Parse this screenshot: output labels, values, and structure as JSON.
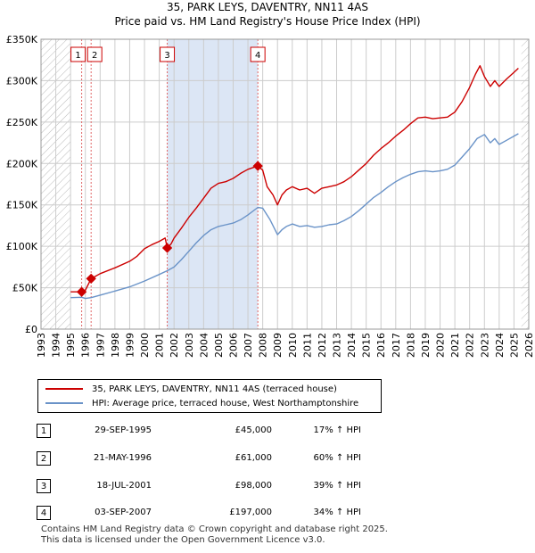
{
  "title_line1": "35, PARK LEYS, DAVENTRY, NN11 4AS",
  "title_line2": "Price paid vs. HM Land Registry's House Price Index (HPI)",
  "colors": {
    "property": "#cc0000",
    "hpi": "#6a93c8",
    "shade": "#dce6f5",
    "grid": "#cccccc"
  },
  "chart_data": {
    "type": "line",
    "ylim": [
      0,
      350000
    ],
    "xlim": [
      1993,
      2026
    ],
    "y_ticks": [
      0,
      50000,
      100000,
      150000,
      200000,
      250000,
      300000,
      350000
    ],
    "y_tick_labels": [
      "£0",
      "£50K",
      "£100K",
      "£150K",
      "£200K",
      "£250K",
      "£300K",
      "£350K"
    ],
    "x_tick_labels": [
      "1993",
      "1994",
      "1995",
      "1996",
      "1997",
      "1998",
      "1999",
      "2000",
      "2001",
      "2002",
      "2003",
      "2004",
      "2005",
      "2006",
      "2007",
      "2008",
      "2009",
      "2010",
      "2011",
      "2012",
      "2013",
      "2014",
      "2015",
      "2016",
      "2017",
      "2018",
      "2019",
      "2020",
      "2021",
      "2022",
      "2023",
      "2024",
      "2025",
      "2026"
    ],
    "hatched_until": 1995.0,
    "hatched_from": 2025.5,
    "shaded_between": [
      2001.54,
      2007.67
    ],
    "series": [
      {
        "name": "35, PARK LEYS, DAVENTRY, NN11 4AS (terraced house)",
        "x": [
          1995.0,
          1995.75,
          1995.95,
          1996.39,
          1996.7,
          1997.0,
          1998.0,
          1999.0,
          1999.5,
          2000.0,
          2000.5,
          2001.0,
          2001.4,
          2001.54,
          2001.8,
          2002.0,
          2002.5,
          2003.0,
          2003.5,
          2004.0,
          2004.5,
          2005.0,
          2005.5,
          2006.0,
          2006.5,
          2007.0,
          2007.67,
          2008.0,
          2008.3,
          2008.7,
          2009.0,
          2009.3,
          2009.6,
          2010.0,
          2010.5,
          2011.0,
          2011.5,
          2012.0,
          2012.5,
          2013.0,
          2013.5,
          2014.0,
          2014.5,
          2015.0,
          2015.5,
          2016.0,
          2016.5,
          2017.0,
          2017.5,
          2018.0,
          2018.5,
          2019.0,
          2019.5,
          2020.0,
          2020.5,
          2021.0,
          2021.5,
          2022.0,
          2022.4,
          2022.7,
          2023.0,
          2023.4,
          2023.7,
          2024.0,
          2024.5,
          2025.0,
          2025.3
        ],
        "values": [
          45000,
          45000,
          45200,
          61000,
          64000,
          67000,
          74000,
          82000,
          88000,
          97000,
          102000,
          106000,
          110000,
          98000,
          103000,
          110000,
          122000,
          135000,
          146000,
          158000,
          170000,
          176000,
          178000,
          182000,
          188000,
          193000,
          197000,
          192000,
          172000,
          162000,
          150000,
          162000,
          168000,
          172000,
          168000,
          170000,
          164000,
          170000,
          172000,
          174000,
          178000,
          184000,
          192000,
          200000,
          210000,
          218000,
          225000,
          233000,
          240000,
          248000,
          255000,
          256000,
          254000,
          255000,
          256000,
          262000,
          275000,
          292000,
          308000,
          318000,
          305000,
          293000,
          300000,
          293000,
          302000,
          310000,
          315000
        ]
      },
      {
        "name": "HPI: Average price, terraced house, West Northamptonshire",
        "x": [
          1995.0,
          1995.75,
          1996.0,
          1996.39,
          1997.0,
          1998.0,
          1999.0,
          2000.0,
          2001.0,
          2001.54,
          2002.0,
          2002.5,
          2003.0,
          2003.5,
          2004.0,
          2004.5,
          2005.0,
          2005.5,
          2006.0,
          2006.5,
          2007.0,
          2007.67,
          2008.0,
          2008.5,
          2009.0,
          2009.3,
          2009.6,
          2010.0,
          2010.5,
          2011.0,
          2011.5,
          2012.0,
          2012.5,
          2013.0,
          2013.5,
          2014.0,
          2014.5,
          2015.0,
          2015.5,
          2016.0,
          2016.5,
          2017.0,
          2017.5,
          2018.0,
          2018.5,
          2019.0,
          2019.5,
          2020.0,
          2020.5,
          2021.0,
          2021.5,
          2022.0,
          2022.5,
          2023.0,
          2023.4,
          2023.7,
          2024.0,
          2024.5,
          2025.0,
          2025.3
        ],
        "values": [
          38000,
          38400,
          37000,
          38000,
          41000,
          46000,
          51000,
          58000,
          66000,
          70500,
          75000,
          84000,
          94000,
          104000,
          113000,
          120000,
          124000,
          126000,
          128000,
          132000,
          138000,
          147000,
          146000,
          132000,
          114000,
          120000,
          124000,
          127000,
          124000,
          125000,
          123000,
          124000,
          126000,
          127000,
          131000,
          136000,
          143000,
          151000,
          159000,
          165000,
          172000,
          178000,
          183000,
          187000,
          190000,
          191000,
          190000,
          191000,
          193000,
          198000,
          208000,
          218000,
          230000,
          235000,
          225000,
          230000,
          223000,
          228000,
          233000,
          236000
        ]
      }
    ],
    "sales": [
      {
        "label": "1",
        "x": 1995.75,
        "value": 45000
      },
      {
        "label": "2",
        "x": 1996.39,
        "value": 61000
      },
      {
        "label": "3",
        "x": 2001.54,
        "value": 98000
      },
      {
        "label": "4",
        "x": 2007.67,
        "value": 197000
      }
    ]
  },
  "legend": {
    "property_label": "35, PARK LEYS, DAVENTRY, NN11 4AS (terraced house)",
    "hpi_label": "HPI: Average price, terraced house, West Northamptonshire"
  },
  "transactions": [
    {
      "num": "1",
      "date": "29-SEP-1995",
      "price": "£45,000",
      "hpi": "17% ↑ HPI"
    },
    {
      "num": "2",
      "date": "21-MAY-1996",
      "price": "£61,000",
      "hpi": "60% ↑ HPI"
    },
    {
      "num": "3",
      "date": "18-JUL-2001",
      "price": "£98,000",
      "hpi": "39% ↑ HPI"
    },
    {
      "num": "4",
      "date": "03-SEP-2007",
      "price": "£197,000",
      "hpi": "34% ↑ HPI"
    }
  ],
  "footer": {
    "line1": "Contains HM Land Registry data © Crown copyright and database right 2025.",
    "line2": "This data is licensed under the Open Government Licence v3.0."
  }
}
